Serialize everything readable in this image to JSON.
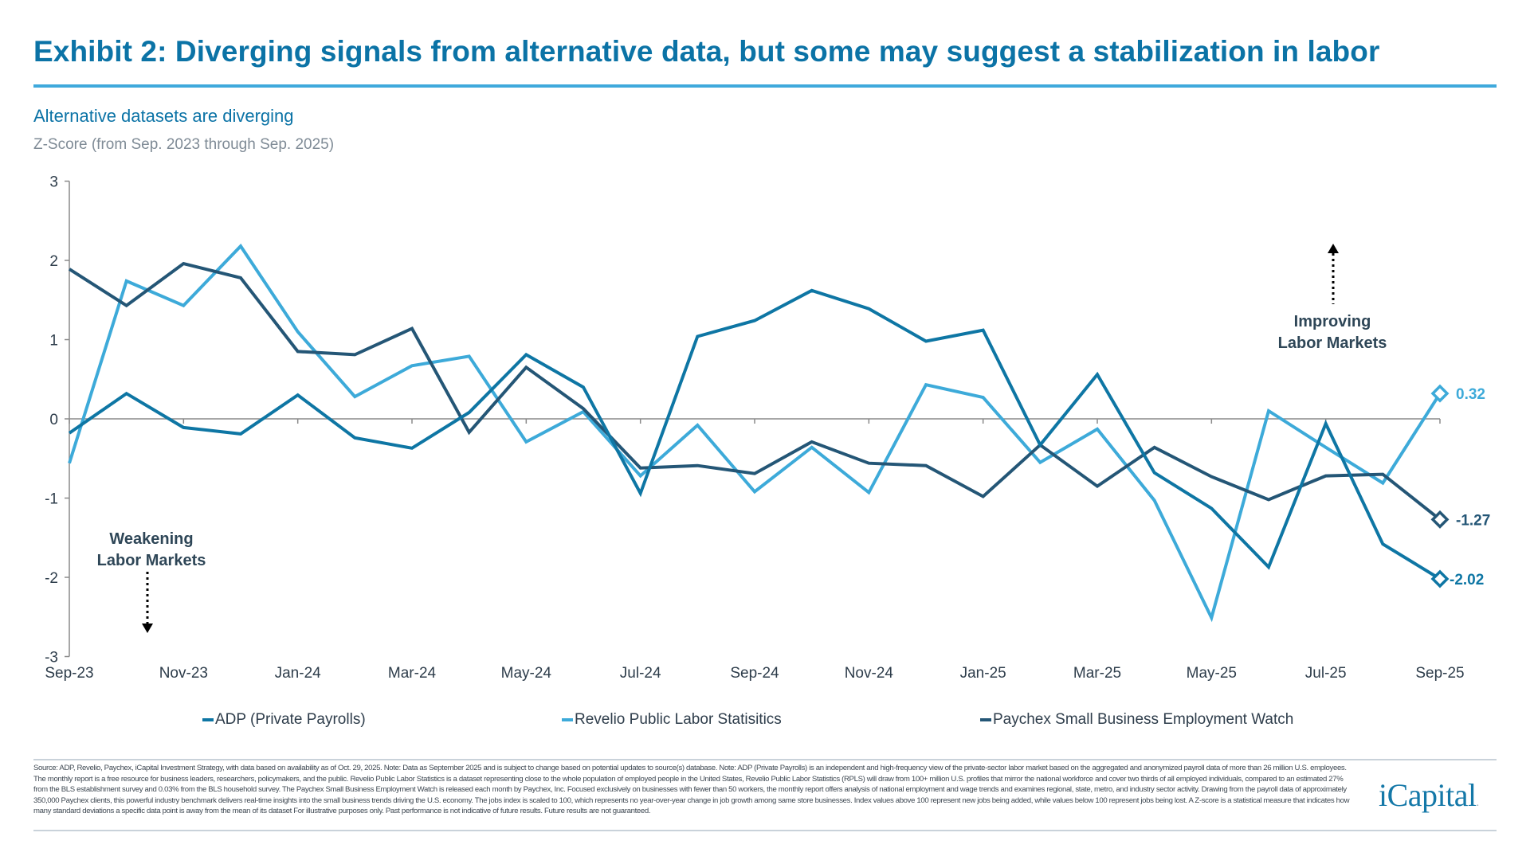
{
  "header": {
    "title": "Exhibit 2: Diverging signals from alternative data, but some may suggest a stabilization in labor",
    "subtitle": "Alternative datasets are diverging",
    "unit_note": "Z-Score (from Sep. 2023 through Sep. 2025)"
  },
  "colors": {
    "title": "#0B73A6",
    "rule": "#3FA9DC",
    "adp": "#0E76A4",
    "revelio": "#3DAAD9",
    "paychex": "#245676",
    "axis": "#8A8A8A",
    "annotation": "#2E4657"
  },
  "annotations": {
    "improving_line1": "Improving",
    "improving_line2": "Labor Markets",
    "weakening_line1": "Weakening",
    "weakening_line2": "Labor Markets"
  },
  "legend": [
    {
      "label": "ADP (Private Payrolls)",
      "color": "#0E76A4"
    },
    {
      "label": "Revelio Public Labor Statisitics",
      "color": "#3DAAD9"
    },
    {
      "label": "Paychex Small Business Employment Watch",
      "color": "#245676"
    }
  ],
  "footer": {
    "note": "Source: ADP, Revelio, Paychex, iCapital Investment Strategy, with data based on availability as of Oct. 29, 2025. Note: Data as September 2025 and is subject to change based on potential updates to source(s) database. Note: ADP (Private Payrolls) is an independent and high-frequency view of the private-sector labor market based on the aggregated and anonymized payroll data of more than 26 million U.S. employees. The monthly report is a free resource for business leaders, researchers, policymakers, and the public. Revelio Public Labor Statistics is a dataset representing close to the whole population of employed people in the United States, Revelio Public Labor Statistics (RPLS) will draw from 100+ million U.S. profiles that mirror the national workforce and cover two thirds of all employed individuals, compared to an estimated 27% from the BLS establishment survey and 0.03% from the BLS household survey. The Paychex Small Business Employment Watch is released each month by Paychex, Inc. Focused exclusively on businesses with fewer than 50 workers, the monthly report offers analysis of national employment and wage trends and examines regional, state, metro, and industry sector activity. Drawing from the payroll data of approximately 350,000 Paychex clients, this powerful industry benchmark delivers real-time insights into the small business trends driving the U.S. economy. The jobs index is scaled to 100, which represents no year-over-year change in job growth among same store businesses. Index values above 100 represent new jobs being added, while values below 100 represent jobs being lost.  A Z-score is a statistical measure that indicates how many standard deviations a specific data point is away from the mean of its dataset For illustrative purposes only.  Past performance is not indicative of future results. Future results are not guaranteed.",
    "logo": "iCapital",
    "logo_dot": "."
  },
  "chart_data": {
    "type": "line",
    "title": "Alternative datasets are diverging",
    "subtitle": "Z-Score (from Sep. 2023 through Sep. 2025)",
    "xlabel": "",
    "ylabel": "Z-Score",
    "ylim": [
      -3,
      3
    ],
    "yticks": [
      3,
      2,
      1,
      0,
      -1,
      -2,
      -3
    ],
    "grid": false,
    "legend_position": "bottom",
    "x": [
      "Sep-23",
      "Oct-23",
      "Nov-23",
      "Dec-23",
      "Jan-24",
      "Feb-24",
      "Mar-24",
      "Apr-24",
      "May-24",
      "Jun-24",
      "Jul-24",
      "Aug-24",
      "Sep-24",
      "Oct-24",
      "Nov-24",
      "Dec-24",
      "Jan-25",
      "Feb-25",
      "Mar-25",
      "Apr-25",
      "May-25",
      "Jun-25",
      "Jul-25",
      "Aug-25",
      "Sep-25"
    ],
    "xtick_labels": [
      "Sep-23",
      "Nov-23",
      "Jan-24",
      "Mar-24",
      "May-24",
      "Jul-24",
      "Sep-24",
      "Nov-24",
      "Jan-25",
      "Mar-25",
      "May-25",
      "Jul-25",
      "Sep-25"
    ],
    "series": [
      {
        "name": "ADP (Private Payrolls)",
        "color": "#0E76A4",
        "values": [
          -0.18,
          0.32,
          -0.11,
          -0.19,
          0.3,
          -0.24,
          -0.37,
          0.08,
          0.81,
          0.4,
          -0.94,
          1.04,
          1.24,
          1.62,
          1.39,
          0.98,
          1.12,
          -0.33,
          0.56,
          -0.68,
          -1.13,
          -1.87,
          -0.06,
          -1.58,
          -2.02
        ],
        "end_label": "-2.02"
      },
      {
        "name": "Revelio Public Labor Statisitics",
        "color": "#3DAAD9",
        "values": [
          -0.56,
          1.74,
          1.43,
          2.18,
          1.1,
          0.28,
          0.67,
          0.79,
          -0.29,
          0.09,
          -0.72,
          -0.08,
          -0.92,
          -0.36,
          -0.93,
          0.43,
          0.27,
          -0.55,
          -0.13,
          -1.03,
          -2.51,
          0.1,
          -0.36,
          -0.81,
          0.32
        ],
        "end_label": "0.32"
      },
      {
        "name": "Paychex Small Business Employment Watch",
        "color": "#245676",
        "values": [
          1.89,
          1.43,
          1.96,
          1.78,
          0.85,
          0.81,
          1.14,
          -0.17,
          0.65,
          0.13,
          -0.62,
          -0.59,
          -0.69,
          -0.29,
          -0.56,
          -0.59,
          -0.98,
          -0.33,
          -0.85,
          -0.36,
          -0.73,
          -1.02,
          -0.72,
          -0.7,
          -1.27
        ],
        "end_label": "-1.27"
      }
    ],
    "annotations": [
      {
        "text": "Improving Labor Markets",
        "arrow": "up"
      },
      {
        "text": "Weakening Labor Markets",
        "arrow": "down"
      }
    ]
  }
}
